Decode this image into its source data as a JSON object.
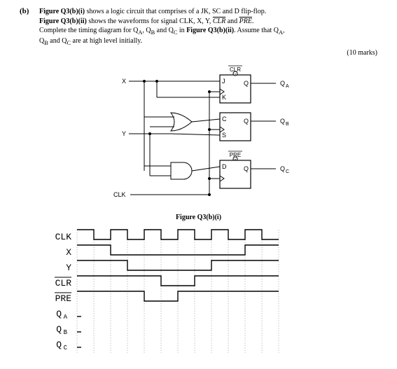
{
  "part": "(b)",
  "q_line1": "Figure Q3(b)(i)",
  "q_text1": " shows a logic circuit that comprises of a JK, SC and D flip-flop.",
  "q_line2": "Figure Q3(b)(ii)",
  "q_text2": " shows the waveforms for signal CLK, X, Y, ",
  "q_text2b": " and ",
  "q_text2c": ".",
  "q_line3a": "Complete the timing diagram for Q",
  "q_line3b": ", Q",
  "q_line3c": " and Q",
  "q_line3d": " in ",
  "q_line3e": "Figure Q3(b)(ii)",
  "q_line3f": ". Assume that Q",
  "q_line3g": ",",
  "q_line4a": "Q",
  "q_line4b": " and Q",
  "q_line4c": " are at high level initially.",
  "marks": "(10 marks)",
  "caption": "Figure Q3(b)(i)",
  "circuit": {
    "labels": {
      "X": "X",
      "Y": "Y",
      "CLK": "CLK",
      "J": "J",
      "K": "K",
      "C": "C",
      "S": "S",
      "D": "D",
      "Q": "Q",
      "QA": "QA",
      "QB": "QB",
      "QC": "QC",
      "CLR": "CLR",
      "PRE": "PRE"
    },
    "stroke": "#000000",
    "fill": "#ffffff"
  },
  "timing": {
    "signals": [
      "CLK",
      "X",
      "Y",
      "CLR_OV",
      "PRE_OV",
      "QA",
      "QB",
      "QC"
    ],
    "labels": {
      "CLK": "CLK",
      "X": "X",
      "Y": "Y",
      "CLR_OV": "CLR",
      "PRE_OV": "PRE",
      "QA": "QA",
      "QB": "QB",
      "QC": "QC"
    },
    "overline": {
      "CLR_OV": true,
      "PRE_OV": true
    },
    "subscript": {
      "QA": "A",
      "QB": "B",
      "QC": "C"
    },
    "baseStart": 0,
    "unit": 24,
    "cycles": 12,
    "high": -14,
    "low": 0,
    "waveforms": {
      "CLK": [
        1,
        0,
        1,
        0,
        1,
        0,
        1,
        0,
        1,
        0,
        1,
        0
      ],
      "X": [
        1,
        1,
        0,
        0,
        0,
        0,
        0,
        0,
        0,
        0,
        1,
        1
      ],
      "Y": [
        1,
        1,
        1,
        0,
        0,
        0,
        0,
        0,
        1,
        1,
        1,
        1
      ],
      "CLR_OV": [
        1,
        1,
        1,
        1,
        1,
        0,
        0,
        1,
        1,
        1,
        1,
        1
      ],
      "PRE_OV": [
        1,
        1,
        1,
        1,
        0,
        0,
        1,
        1,
        1,
        1,
        1,
        1
      ],
      "QA": [],
      "QB": [],
      "QC": []
    },
    "dottedColor": "#999999",
    "lineColor": "#000000"
  }
}
